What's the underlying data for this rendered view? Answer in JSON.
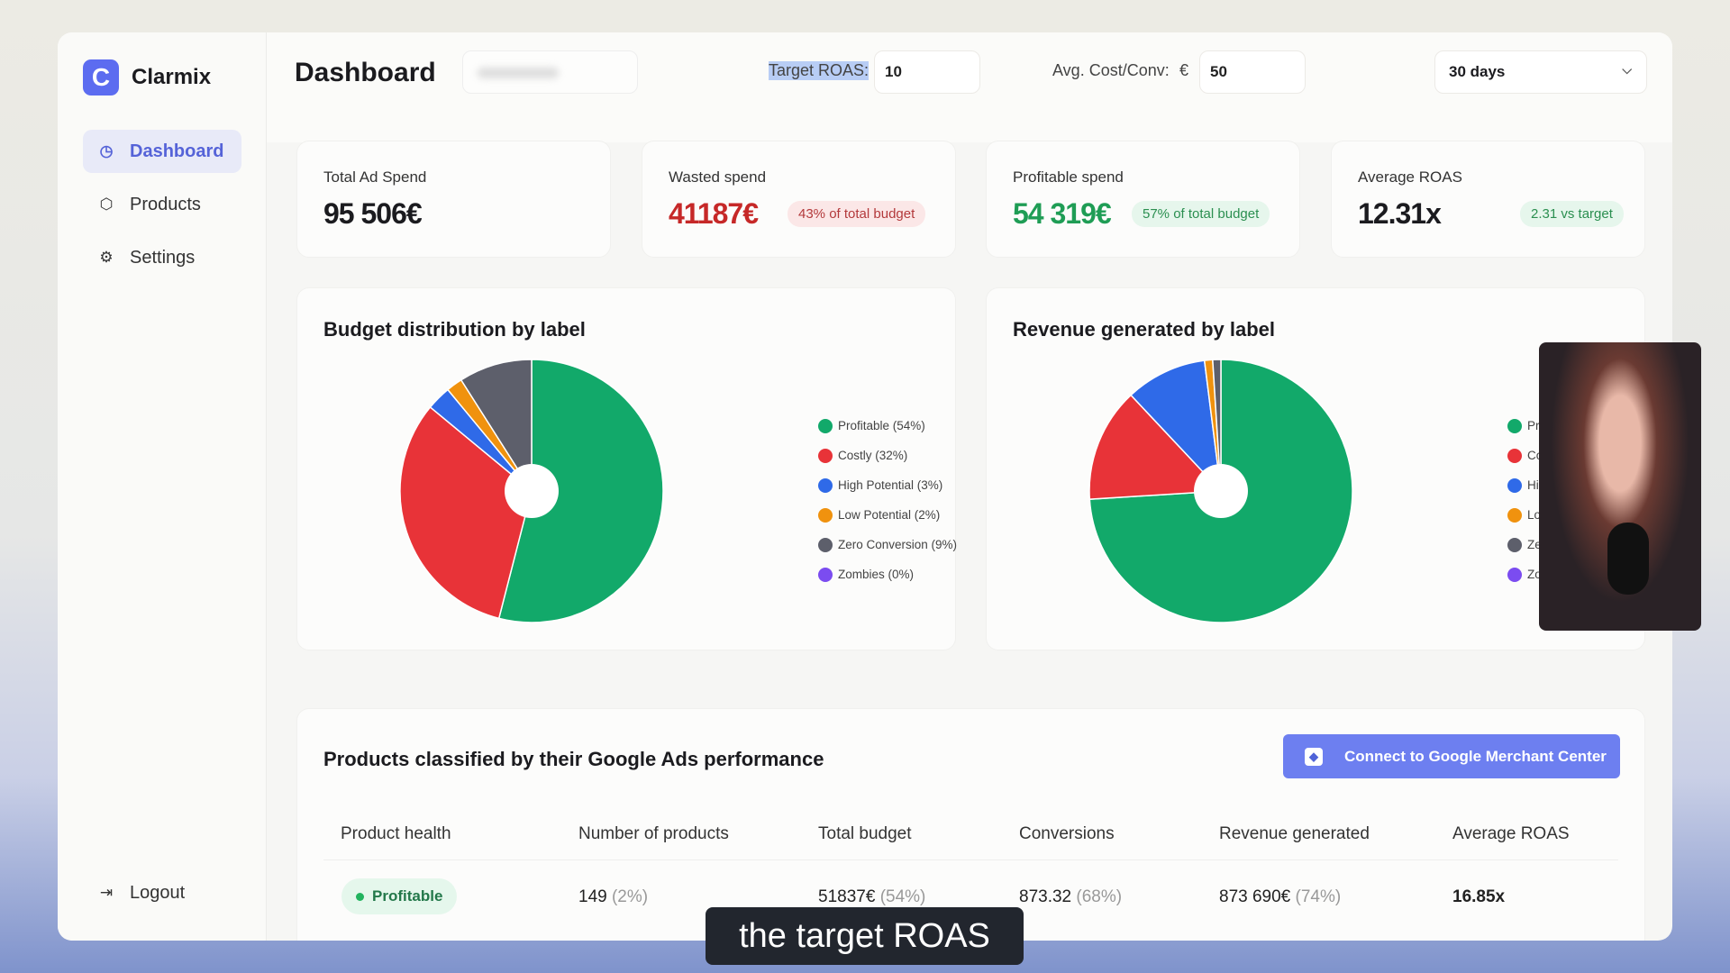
{
  "app": {
    "name": "Clarmix",
    "logo_letter": "C"
  },
  "sidebar": {
    "items": [
      {
        "label": "Dashboard",
        "icon": "pie-chart-icon",
        "active": true
      },
      {
        "label": "Products",
        "icon": "box-icon"
      },
      {
        "label": "Settings",
        "icon": "gear-icon"
      }
    ],
    "logout": "Logout"
  },
  "header": {
    "title": "Dashboard",
    "target_roas_label": "Target ROAS:",
    "target_roas_value": "10",
    "avg_cost_label": "Avg. Cost/Conv:",
    "currency": "€",
    "avg_cost_value": "50",
    "period": "30 days"
  },
  "stats": [
    {
      "label": "Total Ad Spend",
      "value": "95 506€"
    },
    {
      "label": "Wasted spend",
      "value": "41187€",
      "badge": "43% of total budget"
    },
    {
      "label": "Profitable spend",
      "value": "54 319€",
      "badge": "57% of total budget"
    },
    {
      "label": "Average ROAS",
      "value": "12.31x",
      "badge": "2.31 vs target"
    }
  ],
  "colors": {
    "profitable": "#12a96a",
    "costly": "#e83338",
    "high_potential": "#2f6ae8",
    "low_potential": "#f0920e",
    "zero_conversion": "#5d5f6b",
    "zombies": "#7b4cf0",
    "accent": "#6d7ff0"
  },
  "chart_data": [
    {
      "type": "pie",
      "title": "Budget distribution by label",
      "categories": [
        "Profitable",
        "Costly",
        "High Potential",
        "Low Potential",
        "Zero Conversion",
        "Zombies"
      ],
      "values": [
        54,
        32,
        3,
        2,
        9,
        0
      ],
      "legend_labels": [
        "Profitable (54%)",
        "Costly (32%)",
        "High Potential (3%)",
        "Low Potential (2%)",
        "Zero Conversion (9%)",
        "Zombies (0%)"
      ],
      "legend": "right",
      "donut": true
    },
    {
      "type": "pie",
      "title": "Revenue generated by label",
      "categories": [
        "Profitable",
        "Costly",
        "High Potential",
        "Low Potential",
        "Zero Conversion",
        "Zombies"
      ],
      "values": [
        74,
        14,
        10,
        1,
        1,
        0
      ],
      "legend_labels": [
        "Profitable (74%)",
        "Costly (14%)",
        "High Potential",
        "Low Potential",
        "Zero Conversion",
        "Zombies (0%)"
      ],
      "legend": "right",
      "donut": true
    }
  ],
  "table": {
    "title": "Products classified by their Google Ads performance",
    "connect_button": "Connect to Google Merchant Center",
    "columns": [
      "Product health",
      "Number of products",
      "Total budget",
      "Conversions",
      "Revenue generated",
      "Average ROAS"
    ],
    "rows": [
      {
        "health": "Profitable",
        "products": "149",
        "products_pct": "(2%)",
        "budget": "51837€",
        "budget_pct": "(54%)",
        "conversions": "873.32",
        "conversions_pct": "(68%)",
        "revenue": "873 690€",
        "revenue_pct": "(74%)",
        "roas": "16.85x"
      }
    ]
  },
  "caption": "the target ROAS"
}
